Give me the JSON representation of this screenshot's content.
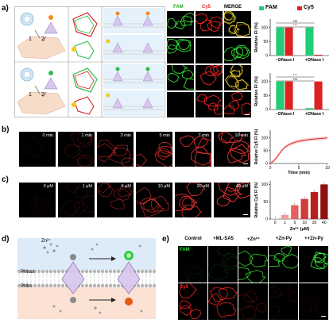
{
  "panel_labels": {
    "a": "a)",
    "b": "b)",
    "c": "c)",
    "d": "d)",
    "e": "e)"
  },
  "panel_a": {
    "channel_headers": [
      "FAM",
      "Cy5",
      "MERGE"
    ],
    "header_colors": [
      "#22aa22",
      "#dd2222",
      "#000000"
    ],
    "cartoon_step_labels": [
      "1",
      "2"
    ],
    "chart_legend": [
      "FAM",
      "Cy5"
    ]
  },
  "panel_b": {
    "time_labels": [
      "0 min",
      "1 min",
      "3 min",
      "5 min",
      "7 min",
      "10 min"
    ]
  },
  "panel_c": {
    "conc_labels": [
      "0 μM",
      "1 μM",
      "5 μM",
      "10 μM",
      "20 μM",
      "40 μM"
    ]
  },
  "panel_d": {
    "zn_label": "Zn²⁺",
    "pm_out": "PMout",
    "pm_in": "PMin"
  },
  "panel_e": {
    "col_labels": [
      "Control",
      "+ML-SA5",
      "+Zn²⁺",
      "+Zn-Py",
      "++Zn-Py"
    ],
    "row_labels": [
      "FAM",
      "Cy5"
    ]
  },
  "chart_data": [
    {
      "type": "bar",
      "categories": [
        "−DNase I",
        "+DNase I"
      ],
      "series": [
        {
          "name": "FAM",
          "values": [
            100,
            100
          ],
          "color": "#22cc77"
        },
        {
          "name": "Cy5",
          "values": [
            100,
            3
          ],
          "color": "#dd2222"
        }
      ],
      "ylabel": "Relative FI (%)",
      "ylim": [
        0,
        130
      ],
      "yticks": [
        0,
        50,
        100
      ],
      "annotations": [
        "ns",
        "***"
      ]
    },
    {
      "type": "bar",
      "categories": [
        "−DNase I",
        "+DNase I"
      ],
      "series": [
        {
          "name": "FAM",
          "values": [
            100,
            5
          ],
          "color": "#22cc77"
        },
        {
          "name": "Cy5",
          "values": [
            100,
            100
          ],
          "color": "#dd2222"
        }
      ],
      "ylabel": "Relative FI (%)",
      "ylim": [
        0,
        130
      ],
      "yticks": [
        0,
        50,
        100
      ],
      "annotations": [
        "***",
        "ns"
      ]
    },
    {
      "type": "line",
      "x": [
        0,
        0.5,
        1,
        1.5,
        2,
        2.5,
        3,
        3.5,
        4,
        4.5,
        5,
        6,
        7,
        8,
        9,
        10
      ],
      "y": [
        0,
        8,
        20,
        35,
        50,
        62,
        70,
        76,
        80,
        84,
        87,
        91,
        94,
        96,
        98,
        100
      ],
      "xlabel": "Time (min)",
      "ylabel": "Relative Cy5 FI (%)",
      "xlim": [
        0,
        10
      ],
      "ylim": [
        0,
        130
      ],
      "xticks": [
        0,
        5,
        10
      ],
      "yticks": [
        0,
        50,
        100
      ],
      "color": "#dd3333"
    },
    {
      "type": "bar",
      "categories": [
        "0",
        "1",
        "5",
        "10",
        "20",
        "40"
      ],
      "values": [
        2,
        12,
        40,
        58,
        78,
        100
      ],
      "colors": [
        "#f6c9c9",
        "#f09a9a",
        "#e56060",
        "#d43a3a",
        "#b81e1e",
        "#8e1010"
      ],
      "xlabel": "Zn²⁺ (μM)",
      "ylabel": "Relative Cy5 FI (%)",
      "ylim": [
        0,
        110
      ],
      "yticks": [
        0,
        50,
        100
      ]
    }
  ]
}
